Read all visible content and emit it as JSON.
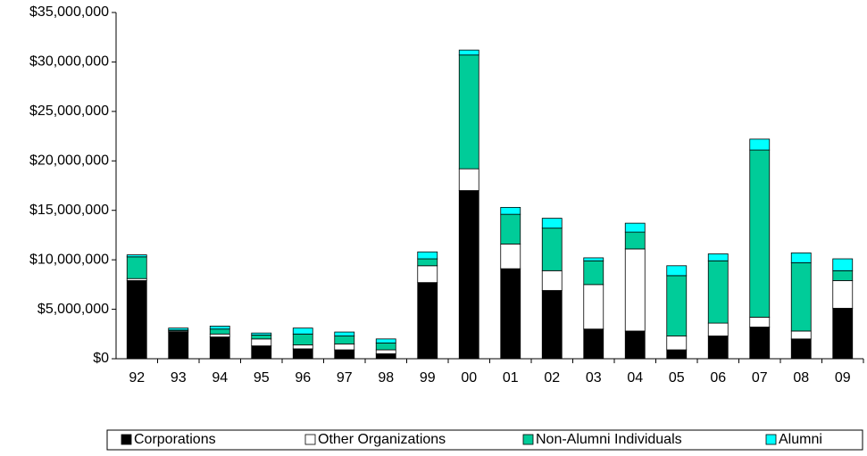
{
  "chart_data": {
    "type": "stacked_bar",
    "categories": [
      "92",
      "93",
      "94",
      "95",
      "96",
      "97",
      "98",
      "99",
      "00",
      "01",
      "02",
      "03",
      "04",
      "05",
      "06",
      "07",
      "08",
      "09"
    ],
    "series": [
      {
        "name": "Corporations",
        "color": "#000000",
        "values": [
          7900000,
          2700000,
          2200000,
          1300000,
          1000000,
          900000,
          500000,
          7700000,
          17000000,
          9100000,
          6900000,
          3000000,
          2800000,
          900000,
          2300000,
          3200000,
          2000000,
          5100000
        ]
      },
      {
        "name": "Other Organizations",
        "color": "#ffffff",
        "values": [
          200000,
          100000,
          300000,
          700000,
          400000,
          600000,
          400000,
          1700000,
          2200000,
          2500000,
          2000000,
          4500000,
          8300000,
          1400000,
          1300000,
          1000000,
          800000,
          2800000
        ]
      },
      {
        "name": "Non-Alumni Individuals",
        "color": "#00cc99",
        "values": [
          2200000,
          100000,
          500000,
          400000,
          1100000,
          800000,
          700000,
          700000,
          11500000,
          3000000,
          4300000,
          2400000,
          1700000,
          6100000,
          6300000,
          16900000,
          6900000,
          1000000
        ]
      },
      {
        "name": "Alumni",
        "color": "#00ffff",
        "values": [
          200000,
          200000,
          300000,
          200000,
          600000,
          400000,
          400000,
          700000,
          500000,
          700000,
          1000000,
          300000,
          900000,
          1000000,
          700000,
          1100000,
          1000000,
          1200000
        ]
      }
    ],
    "ylim": [
      0,
      35000000
    ],
    "yticks": [
      {
        "value": 0,
        "label": "$0"
      },
      {
        "value": 5000000,
        "label": "$5,000,000"
      },
      {
        "value": 10000000,
        "label": "$10,000,000"
      },
      {
        "value": 15000000,
        "label": "$15,000,000"
      },
      {
        "value": 20000000,
        "label": "$20,000,000"
      },
      {
        "value": 25000000,
        "label": "$25,000,000"
      },
      {
        "value": 30000000,
        "label": "$30,000,000"
      },
      {
        "value": 35000000,
        "label": "$35,000,000"
      }
    ],
    "legend": "bottom"
  }
}
